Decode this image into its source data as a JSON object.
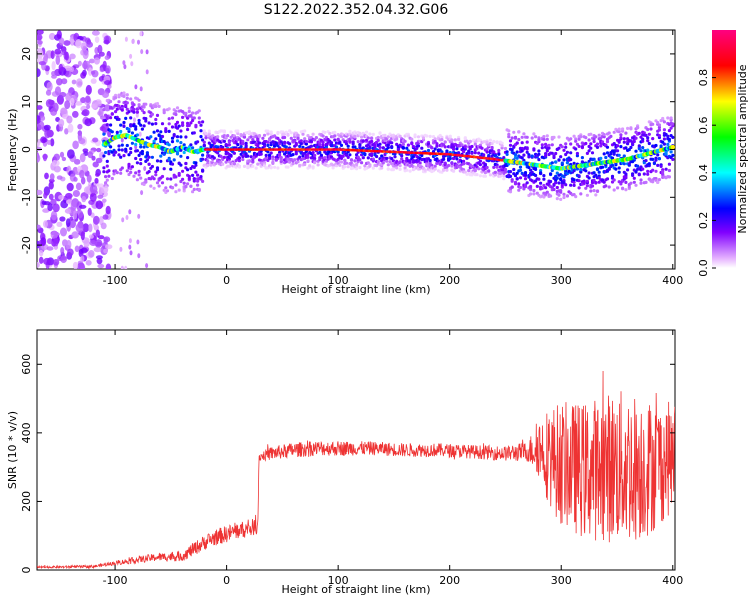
{
  "title": "S122.2022.352.04.32.G06",
  "chart_data": [
    {
      "type": "heatmap",
      "xlabel": "Height of straight line (km)",
      "ylabel": "Frequency (Hz)",
      "xlim": [
        -170,
        402
      ],
      "ylim": [
        -25,
        25
      ],
      "xticks": [
        "-100",
        "0",
        "100",
        "200",
        "300",
        "400"
      ],
      "xtick_values": [
        -100,
        0,
        100,
        200,
        300,
        400
      ],
      "yticks": [
        "-20",
        "-10",
        "0",
        "10",
        "20"
      ],
      "ytick_values": [
        -20,
        -10,
        0,
        10,
        20
      ],
      "colorbar": {
        "label": "Normalized spectral amplitude",
        "ticks": [
          "0.0",
          "0.2",
          "0.4",
          "0.6",
          "0.8"
        ],
        "tick_values": [
          0.0,
          0.2,
          0.4,
          0.6,
          0.8
        ],
        "range": [
          0,
          1
        ],
        "colormap": "gist_rainbow_r"
      },
      "ridge_frequency": {
        "x": [
          -110,
          -100,
          -90,
          -80,
          -70,
          -60,
          -50,
          -40,
          -30,
          -20,
          0,
          50,
          100,
          150,
          200,
          240,
          270,
          300,
          330,
          360,
          400
        ],
        "y": [
          1,
          2.5,
          3,
          2,
          1,
          0.5,
          -0.5,
          0.5,
          -0.5,
          0,
          0,
          0,
          0,
          -0.5,
          -1,
          -2,
          -3,
          -4,
          -3,
          -2,
          0.5
        ]
      },
      "noise_region_x": [
        -170,
        -105
      ]
    },
    {
      "type": "line",
      "xlabel": "Height of straight line (km)",
      "ylabel": "SNR (10 * v/v)",
      "xlim": [
        -170,
        402
      ],
      "ylim": [
        0,
        700
      ],
      "xticks": [
        "-100",
        "0",
        "100",
        "200",
        "300",
        "400"
      ],
      "xtick_values": [
        -100,
        0,
        100,
        200,
        300,
        400
      ],
      "yticks": [
        "0",
        "200",
        "400",
        "600"
      ],
      "ytick_values": [
        0,
        200,
        400,
        600
      ],
      "color": "#ee3333",
      "series": [
        {
          "x": [
            -170,
            -120,
            -100,
            -80,
            -60,
            -40,
            -30,
            -20,
            -10,
            0,
            10,
            20,
            28,
            29,
            40,
            60,
            80,
            100,
            130,
            160,
            190,
            220,
            250,
            270,
            280,
            290,
            300,
            320,
            340,
            360,
            380,
            400
          ],
          "y": [
            8,
            10,
            20,
            30,
            38,
            40,
            60,
            80,
            95,
            105,
            115,
            120,
            130,
            330,
            340,
            350,
            355,
            355,
            355,
            350,
            350,
            345,
            340,
            345,
            360,
            330,
            310,
            290,
            300,
            300,
            300,
            330
          ],
          "spread": [
            3,
            4,
            6,
            10,
            12,
            15,
            20,
            22,
            24,
            25,
            25,
            25,
            25,
            12,
            20,
            22,
            22,
            22,
            20,
            20,
            20,
            20,
            22,
            30,
            90,
            150,
            180,
            200,
            220,
            230,
            200,
            160
          ]
        }
      ]
    }
  ]
}
